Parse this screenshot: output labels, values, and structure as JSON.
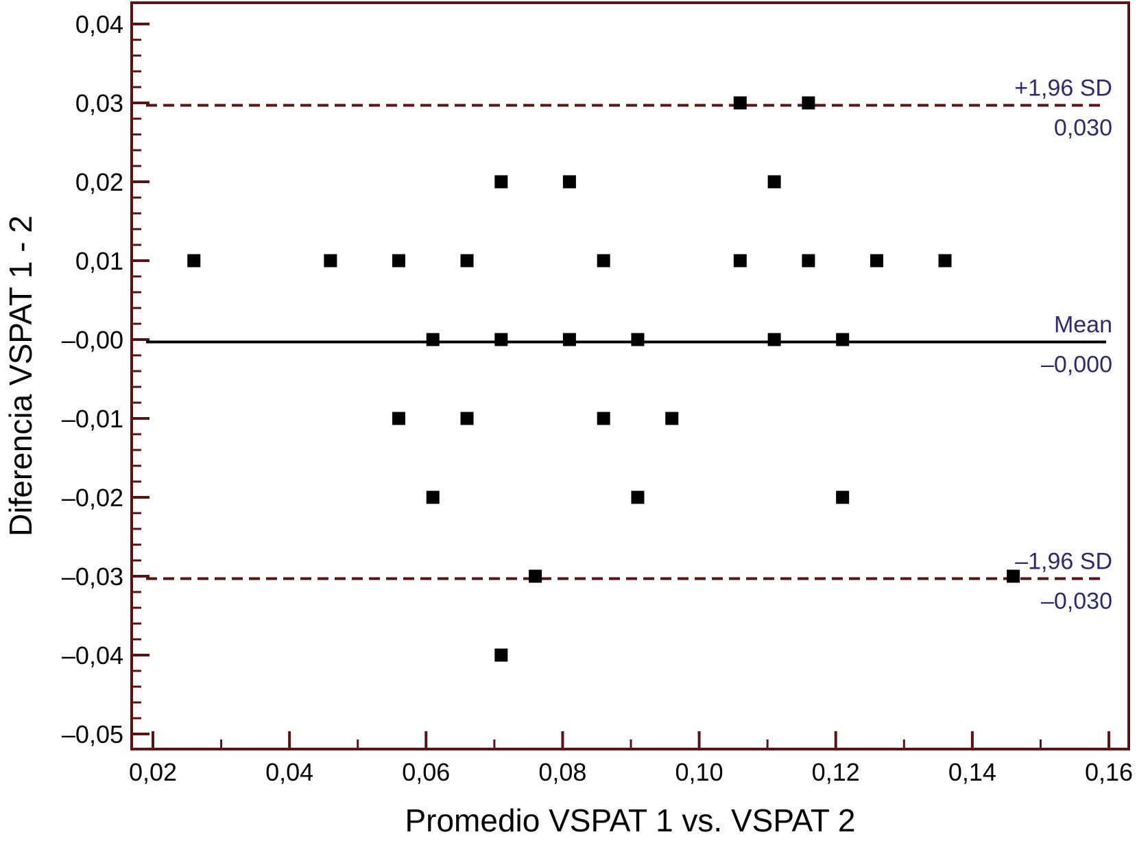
{
  "chart_data": {
    "type": "scatter",
    "title": "",
    "xlabel": "Promedio VSPAT 1 vs. VSPAT 2",
    "ylabel": "Diferencia VSPAT 1 - 2",
    "xlim": [
      0.02,
      0.16
    ],
    "ylim": [
      -0.05,
      0.04
    ],
    "x_ticks": [
      0.02,
      0.04,
      0.06,
      0.08,
      0.1,
      0.12,
      0.14,
      0.16
    ],
    "x_tick_labels": [
      "0,02",
      "0,04",
      "0,06",
      "0,08",
      "0,10",
      "0,12",
      "0,14",
      "0,16"
    ],
    "y_ticks": [
      0.04,
      0.03,
      0.02,
      0.01,
      0.0,
      -0.01,
      -0.02,
      -0.03,
      -0.04,
      -0.05
    ],
    "y_tick_labels": [
      "0,04",
      "0,03",
      "0,02",
      "0,01",
      "–0,00",
      "–0,01",
      "–0,02",
      "–0,03",
      "–0,04",
      "–0,05"
    ],
    "grid": false,
    "points": [
      {
        "x": 0.026,
        "y": 0.01
      },
      {
        "x": 0.046,
        "y": 0.01
      },
      {
        "x": 0.056,
        "y": 0.01
      },
      {
        "x": 0.066,
        "y": 0.01
      },
      {
        "x": 0.086,
        "y": 0.01
      },
      {
        "x": 0.106,
        "y": 0.01
      },
      {
        "x": 0.116,
        "y": 0.01
      },
      {
        "x": 0.126,
        "y": 0.01
      },
      {
        "x": 0.136,
        "y": 0.01
      },
      {
        "x": 0.071,
        "y": 0.02
      },
      {
        "x": 0.081,
        "y": 0.02
      },
      {
        "x": 0.111,
        "y": 0.02
      },
      {
        "x": 0.106,
        "y": 0.03
      },
      {
        "x": 0.116,
        "y": 0.03
      },
      {
        "x": 0.061,
        "y": 0.0
      },
      {
        "x": 0.071,
        "y": 0.0
      },
      {
        "x": 0.081,
        "y": 0.0
      },
      {
        "x": 0.091,
        "y": 0.0
      },
      {
        "x": 0.111,
        "y": 0.0
      },
      {
        "x": 0.121,
        "y": 0.0
      },
      {
        "x": 0.056,
        "y": -0.01
      },
      {
        "x": 0.066,
        "y": -0.01
      },
      {
        "x": 0.086,
        "y": -0.01
      },
      {
        "x": 0.096,
        "y": -0.01
      },
      {
        "x": 0.061,
        "y": -0.02
      },
      {
        "x": 0.091,
        "y": -0.02
      },
      {
        "x": 0.121,
        "y": -0.02
      },
      {
        "x": 0.076,
        "y": -0.03
      },
      {
        "x": 0.146,
        "y": -0.03
      },
      {
        "x": 0.071,
        "y": -0.04
      }
    ],
    "reference_lines": [
      {
        "name": "+1,96 SD",
        "value_label": "0,030",
        "y": 0.0297,
        "style": "dashed",
        "color": "#5a1212"
      },
      {
        "name": "Mean",
        "value_label": "–0,000",
        "y": -0.0003,
        "style": "solid",
        "color": "#000000"
      },
      {
        "name": "–1,96 SD",
        "value_label": "–0,030",
        "y": -0.0303,
        "style": "dashed",
        "color": "#5a1212"
      }
    ],
    "colors": {
      "frame": "#5a1212",
      "points": "#000000",
      "label_text": "#2e2a6e",
      "axis_text": "#000000"
    }
  }
}
